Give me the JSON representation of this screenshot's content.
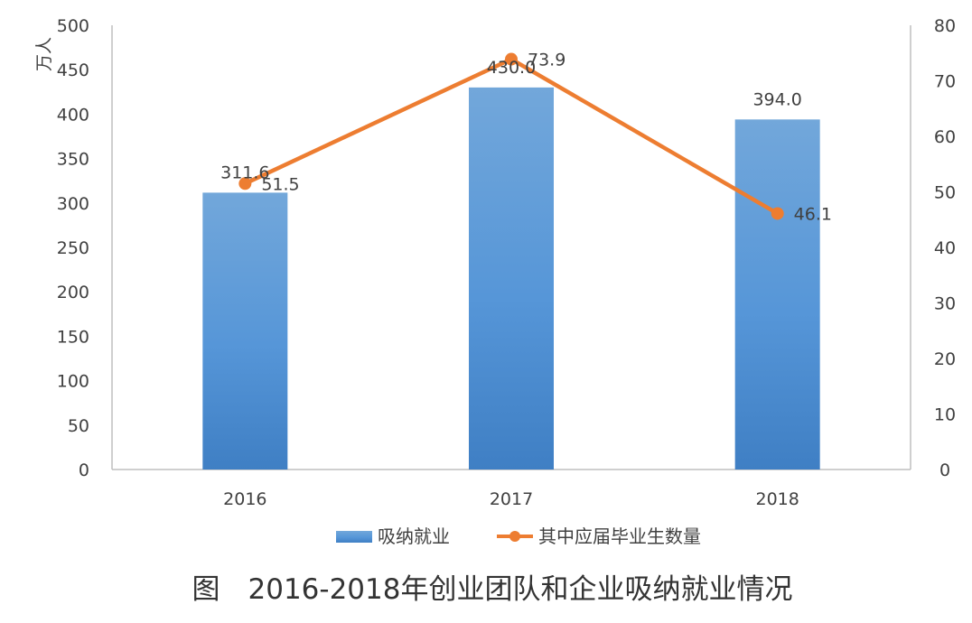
{
  "chart_data": {
    "type": "bar",
    "title": "图　2016-2018年创业团队和企业吸纳就业情况",
    "categories": [
      "2016",
      "2017",
      "2018"
    ],
    "ylabel": "万人",
    "ylim": [
      0,
      500
    ],
    "y2lim": [
      0,
      80
    ],
    "y_ticks": [
      0,
      50,
      100,
      150,
      200,
      250,
      300,
      350,
      400,
      450,
      500
    ],
    "y2_ticks": [
      0,
      10,
      20,
      30,
      40,
      50,
      60,
      70,
      80
    ],
    "grid": false,
    "legend_position": "bottom",
    "series": [
      {
        "name": "吸纳就业",
        "type": "bar",
        "axis": "left",
        "color": "#5B9BD5",
        "values": [
          311.6,
          430.0,
          394.0
        ],
        "labels": [
          "311.6",
          "430.0",
          "394.0"
        ]
      },
      {
        "name": "其中应届毕业生数量",
        "type": "line",
        "axis": "right",
        "color": "#ED7D31",
        "values": [
          51.5,
          73.9,
          46.1
        ],
        "labels": [
          "51.5",
          "73.9",
          "46.1"
        ]
      }
    ]
  }
}
